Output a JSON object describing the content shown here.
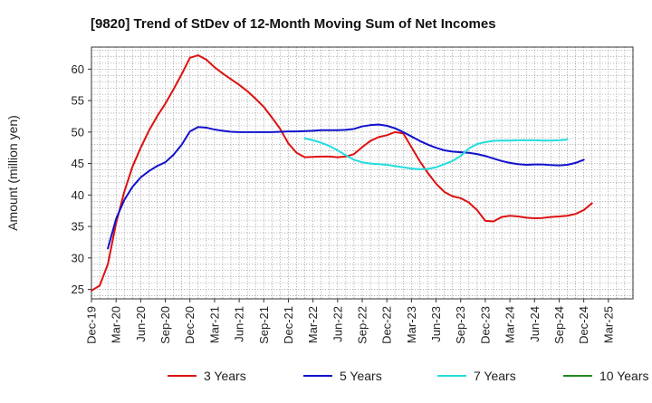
{
  "chart_data": {
    "type": "line",
    "title": "[9820]  Trend of StDev of 12-Month Moving Sum of Net Incomes",
    "xlabel": "",
    "ylabel": "Amount (million yen)",
    "ylim": [
      23.5,
      63.5
    ],
    "yticks": [
      25,
      30,
      35,
      40,
      45,
      50,
      55,
      60
    ],
    "xlim": [
      0,
      66
    ],
    "x_tick_labels": [
      "Dec-19",
      "Mar-20",
      "Jun-20",
      "Sep-20",
      "Dec-20",
      "Mar-21",
      "Jun-21",
      "Sep-21",
      "Dec-21",
      "Mar-22",
      "Jun-22",
      "Sep-22",
      "Dec-22",
      "Mar-23",
      "Jun-23",
      "Sep-23",
      "Dec-23",
      "Mar-24",
      "Jun-24",
      "Sep-24",
      "Dec-24",
      "Mar-25"
    ],
    "grid": true,
    "legend_position": "bottom",
    "series": [
      {
        "name": "3 Years",
        "color": "#dd1111",
        "start_index": 0,
        "values": [
          24.8,
          25.6,
          29.0,
          35.5,
          40.5,
          44.5,
          47.5,
          50.2,
          52.5,
          54.5,
          56.8,
          59.2,
          61.8,
          62.2,
          61.5,
          60.3,
          59.3,
          58.4,
          57.5,
          56.5,
          55.3,
          54.0,
          52.3,
          50.5,
          48.2,
          46.7,
          46.0,
          46.05,
          46.1,
          46.1,
          46.0,
          46.1,
          46.5,
          47.6,
          48.6,
          49.2,
          49.5,
          50.0,
          49.8,
          47.6,
          45.4,
          43.5,
          41.8,
          40.5,
          39.8,
          39.5,
          38.8,
          37.6,
          35.9,
          35.8,
          36.5,
          36.7,
          36.6,
          36.4,
          36.3,
          36.35,
          36.5,
          36.6,
          36.7,
          37.0,
          37.6,
          38.7
        ]
      },
      {
        "name": "5 Years",
        "color": "#1111cc",
        "start_index": 2,
        "values": [
          31.5,
          36.2,
          39.2,
          41.3,
          42.8,
          43.8,
          44.6,
          45.2,
          46.4,
          48.0,
          50.1,
          50.8,
          50.7,
          50.4,
          50.2,
          50.05,
          50.0,
          50.0,
          50.0,
          50.0,
          50.0,
          50.05,
          50.1,
          50.1,
          50.15,
          50.2,
          50.3,
          50.3,
          50.3,
          50.35,
          50.5,
          50.9,
          51.1,
          51.2,
          51.0,
          50.6,
          50.0,
          49.3,
          48.6,
          48.0,
          47.5,
          47.1,
          46.9,
          46.8,
          46.7,
          46.5,
          46.2,
          45.8,
          45.4,
          45.1,
          44.9,
          44.8,
          44.85,
          44.85,
          44.75,
          44.7,
          44.8,
          45.1,
          45.6
        ]
      },
      {
        "name": "7 Years",
        "color": "#22dddd",
        "start_index": 26,
        "values": [
          49.0,
          48.7,
          48.3,
          47.8,
          47.1,
          46.3,
          45.6,
          45.2,
          45.0,
          44.9,
          44.8,
          44.6,
          44.4,
          44.2,
          44.1,
          44.15,
          44.4,
          44.9,
          45.4,
          46.2,
          47.4,
          48.1,
          48.4,
          48.6,
          48.65,
          48.65,
          48.7,
          48.7,
          48.7,
          48.65,
          48.65,
          48.7,
          48.8
        ]
      },
      {
        "name": "10 Years",
        "color": "#228822",
        "start_index": 0,
        "values": []
      }
    ]
  }
}
